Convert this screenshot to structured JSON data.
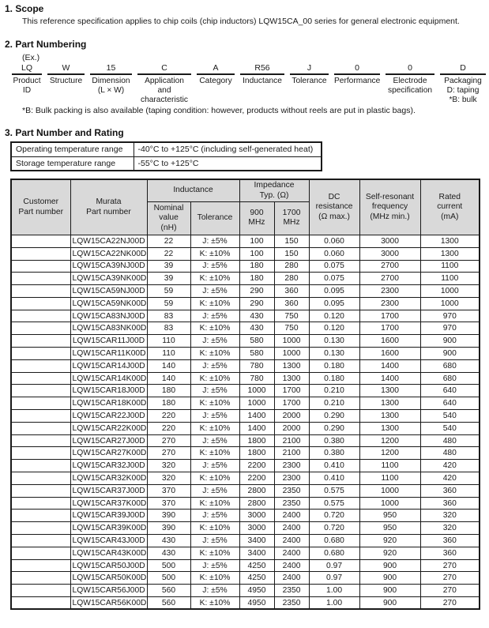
{
  "scope": {
    "heading": "1. Scope",
    "body": "This reference specification applies to chip coils (chip inductors) LQW15CA_00 series for general electronic equipment."
  },
  "part_numbering": {
    "heading": "2. Part Numbering",
    "example_label": "(Ex.)",
    "segments": [
      {
        "code": "LQ",
        "label": "Product\nID"
      },
      {
        "code": "W",
        "label": "Structure"
      },
      {
        "code": "15",
        "label": "Dimension\n(L × W)"
      },
      {
        "code": "C",
        "label": "Application\nand\ncharacteristic"
      },
      {
        "code": "A",
        "label": "Category"
      },
      {
        "code": "R56",
        "label": "Inductance"
      },
      {
        "code": "J",
        "label": "Tolerance"
      },
      {
        "code": "0",
        "label": "Performance"
      },
      {
        "code": "0",
        "label": "Electrode\nspecification"
      },
      {
        "code": "D",
        "label": "Packaging\nD: taping\n*B: bulk"
      }
    ],
    "note": "*B: Bulk packing is also available (taping condition: however, products without reels are put in plastic bags)."
  },
  "rating": {
    "heading": "3. Part Number and Rating",
    "temperature_table": {
      "rows": [
        {
          "label": "Operating temperature range",
          "value": "-40°C to +125°C (including self-generated heat)"
        },
        {
          "label": "Storage temperature range",
          "value": "-55°C to +125°C"
        }
      ]
    },
    "table": {
      "header": {
        "customer": "Customer\nPart number",
        "murata": "Murata\nPart number",
        "inductance": "Inductance",
        "nominal": "Nominal\nvalue\n(nH)",
        "tolerance": "Tolerance",
        "impedance": "Impedance\nTyp. (Ω)",
        "mhz900": "900\nMHz",
        "mhz1700": "1700\nMHz",
        "dc": "DC\nresistance\n(Ω max.)",
        "srf": "Self-resonant\nfrequency\n(MHz min.)",
        "rated": "Rated\ncurrent\n(mA)"
      },
      "columns": [
        "customer-part-number",
        "murata-part-number",
        "nominal-value",
        "tolerance",
        "impedance-900mhz",
        "impedance-1700mhz",
        "dc-resistance",
        "self-resonant-frequency",
        "rated-current"
      ],
      "rows": [
        [
          "",
          "LQW15CA22NJ00D",
          "22",
          "J: ±5%",
          "100",
          "150",
          "0.060",
          "3000",
          "1300"
        ],
        [
          "",
          "LQW15CA22NK00D",
          "22",
          "K: ±10%",
          "100",
          "150",
          "0.060",
          "3000",
          "1300"
        ],
        [
          "",
          "LQW15CA39NJ00D",
          "39",
          "J: ±5%",
          "180",
          "280",
          "0.075",
          "2700",
          "1100"
        ],
        [
          "",
          "LQW15CA39NK00D",
          "39",
          "K: ±10%",
          "180",
          "280",
          "0.075",
          "2700",
          "1100"
        ],
        [
          "",
          "LQW15CA59NJ00D",
          "59",
          "J: ±5%",
          "290",
          "360",
          "0.095",
          "2300",
          "1000"
        ],
        [
          "",
          "LQW15CA59NK00D",
          "59",
          "K: ±10%",
          "290",
          "360",
          "0.095",
          "2300",
          "1000"
        ],
        [
          "",
          "LQW15CA83NJ00D",
          "83",
          "J: ±5%",
          "430",
          "750",
          "0.120",
          "1700",
          "970"
        ],
        [
          "",
          "LQW15CA83NK00D",
          "83",
          "K: ±10%",
          "430",
          "750",
          "0.120",
          "1700",
          "970"
        ],
        [
          "",
          "LQW15CAR11J00D",
          "110",
          "J: ±5%",
          "580",
          "1000",
          "0.130",
          "1600",
          "900"
        ],
        [
          "",
          "LQW15CAR11K00D",
          "110",
          "K: ±10%",
          "580",
          "1000",
          "0.130",
          "1600",
          "900"
        ],
        [
          "",
          "LQW15CAR14J00D",
          "140",
          "J: ±5%",
          "780",
          "1300",
          "0.180",
          "1400",
          "680"
        ],
        [
          "",
          "LQW15CAR14K00D",
          "140",
          "K: ±10%",
          "780",
          "1300",
          "0.180",
          "1400",
          "680"
        ],
        [
          "",
          "LQW15CAR18J00D",
          "180",
          "J: ±5%",
          "1000",
          "1700",
          "0.210",
          "1300",
          "640"
        ],
        [
          "",
          "LQW15CAR18K00D",
          "180",
          "K: ±10%",
          "1000",
          "1700",
          "0.210",
          "1300",
          "640"
        ],
        [
          "",
          "LQW15CAR22J00D",
          "220",
          "J: ±5%",
          "1400",
          "2000",
          "0.290",
          "1300",
          "540"
        ],
        [
          "",
          "LQW15CAR22K00D",
          "220",
          "K: ±10%",
          "1400",
          "2000",
          "0.290",
          "1300",
          "540"
        ],
        [
          "",
          "LQW15CAR27J00D",
          "270",
          "J: ±5%",
          "1800",
          "2100",
          "0.380",
          "1200",
          "480"
        ],
        [
          "",
          "LQW15CAR27K00D",
          "270",
          "K: ±10%",
          "1800",
          "2100",
          "0.380",
          "1200",
          "480"
        ],
        [
          "",
          "LQW15CAR32J00D",
          "320",
          "J: ±5%",
          "2200",
          "2300",
          "0.410",
          "1100",
          "420"
        ],
        [
          "",
          "LQW15CAR32K00D",
          "320",
          "K: ±10%",
          "2200",
          "2300",
          "0.410",
          "1100",
          "420"
        ],
        [
          "",
          "LQW15CAR37J00D",
          "370",
          "J: ±5%",
          "2800",
          "2350",
          "0.575",
          "1000",
          "360"
        ],
        [
          "",
          "LQW15CAR37K00D",
          "370",
          "K: ±10%",
          "2800",
          "2350",
          "0.575",
          "1000",
          "360"
        ],
        [
          "",
          "LQW15CAR39J00D",
          "390",
          "J: ±5%",
          "3000",
          "2400",
          "0.720",
          "950",
          "320"
        ],
        [
          "",
          "LQW15CAR39K00D",
          "390",
          "K: ±10%",
          "3000",
          "2400",
          "0.720",
          "950",
          "320"
        ],
        [
          "",
          "LQW15CAR43J00D",
          "430",
          "J: ±5%",
          "3400",
          "2400",
          "0.680",
          "920",
          "360"
        ],
        [
          "",
          "LQW15CAR43K00D",
          "430",
          "K: ±10%",
          "3400",
          "2400",
          "0.680",
          "920",
          "360"
        ],
        [
          "",
          "LQW15CAR50J00D",
          "500",
          "J: ±5%",
          "4250",
          "2400",
          "0.97",
          "900",
          "270"
        ],
        [
          "",
          "LQW15CAR50K00D",
          "500",
          "K: ±10%",
          "4250",
          "2400",
          "0.97",
          "900",
          "270"
        ],
        [
          "",
          "LQW15CAR56J00D",
          "560",
          "J: ±5%",
          "4950",
          "2350",
          "1.00",
          "900",
          "270"
        ],
        [
          "",
          "LQW15CAR56K00D",
          "560",
          "K: ±10%",
          "4950",
          "2350",
          "1.00",
          "900",
          "270"
        ]
      ]
    }
  }
}
